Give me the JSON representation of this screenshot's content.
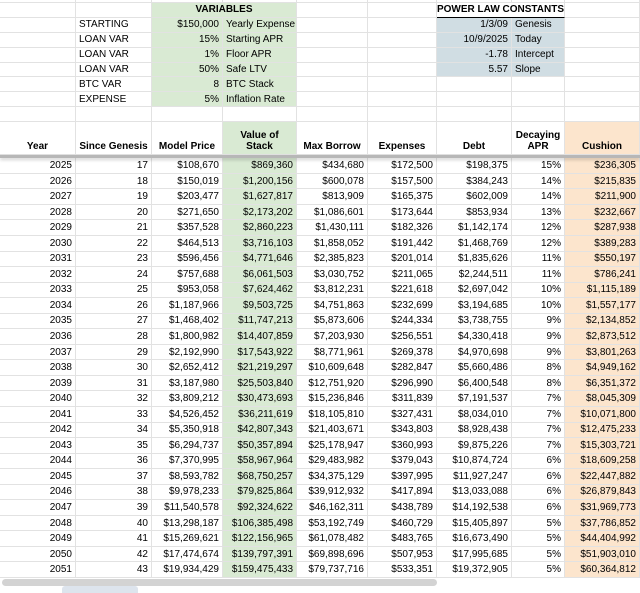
{
  "app": {
    "kind": "spreadsheet",
    "description_visible": "BTC power-law loan model sheet"
  },
  "colors": {
    "variables_bg": "#d9ead3",
    "power_law_bg": "#d0dde3",
    "cushion_bg": "#fce5cd",
    "gridline": "#e2e2e2",
    "frozen_divider": "#b7b7b7",
    "scrollbar_thumb": "#d3d3d3"
  },
  "variables_panel": {
    "title": "VARIABLES",
    "rows": [
      {
        "category": "STARTING",
        "value": "$150,000",
        "name": "Yearly Expense"
      },
      {
        "category": "LOAN VAR",
        "value": "15%",
        "name": "Starting APR"
      },
      {
        "category": "LOAN VAR",
        "value": "1%",
        "name": "Floor APR"
      },
      {
        "category": "LOAN VAR",
        "value": "50%",
        "name": "Safe LTV"
      },
      {
        "category": "BTC VAR",
        "value": "8",
        "name": "BTC Stack"
      },
      {
        "category": "EXPENSE",
        "value": "5%",
        "name": "Inflation Rate"
      }
    ]
  },
  "power_law_panel": {
    "title": "POWER LAW CONSTANTS",
    "rows": [
      {
        "value": "1/3/09",
        "label": "Genesis"
      },
      {
        "value": "10/9/2025",
        "label": "Today"
      },
      {
        "value": "-1.78",
        "label": "Intercept"
      },
      {
        "value": "5.57",
        "label": "Slope"
      }
    ]
  },
  "table": {
    "columns": [
      "Year",
      "Since Genesis",
      "Model Price",
      "Value of Stack",
      "Max Borrow",
      "Expenses",
      "Debt",
      "Decaying APR",
      "Cushion"
    ],
    "rows": [
      [
        "2025",
        "17",
        "$108,670",
        "$869,360",
        "$434,680",
        "$172,500",
        "$198,375",
        "15%",
        "$236,305"
      ],
      [
        "2026",
        "18",
        "$150,019",
        "$1,200,156",
        "$600,078",
        "$157,500",
        "$384,243",
        "14%",
        "$215,835"
      ],
      [
        "2027",
        "19",
        "$203,477",
        "$1,627,817",
        "$813,909",
        "$165,375",
        "$602,009",
        "14%",
        "$211,900"
      ],
      [
        "2028",
        "20",
        "$271,650",
        "$2,173,202",
        "$1,086,601",
        "$173,644",
        "$853,934",
        "13%",
        "$232,667"
      ],
      [
        "2029",
        "21",
        "$357,528",
        "$2,860,223",
        "$1,430,111",
        "$182,326",
        "$1,142,174",
        "12%",
        "$287,938"
      ],
      [
        "2030",
        "22",
        "$464,513",
        "$3,716,103",
        "$1,858,052",
        "$191,442",
        "$1,468,769",
        "12%",
        "$389,283"
      ],
      [
        "2031",
        "23",
        "$596,456",
        "$4,771,646",
        "$2,385,823",
        "$201,014",
        "$1,835,626",
        "11%",
        "$550,197"
      ],
      [
        "2032",
        "24",
        "$757,688",
        "$6,061,503",
        "$3,030,752",
        "$211,065",
        "$2,244,511",
        "11%",
        "$786,241"
      ],
      [
        "2033",
        "25",
        "$953,058",
        "$7,624,462",
        "$3,812,231",
        "$221,618",
        "$2,697,042",
        "10%",
        "$1,115,189"
      ],
      [
        "2034",
        "26",
        "$1,187,966",
        "$9,503,725",
        "$4,751,863",
        "$232,699",
        "$3,194,685",
        "10%",
        "$1,557,177"
      ],
      [
        "2035",
        "27",
        "$1,468,402",
        "$11,747,213",
        "$5,873,606",
        "$244,334",
        "$3,738,755",
        "9%",
        "$2,134,852"
      ],
      [
        "2036",
        "28",
        "$1,800,982",
        "$14,407,859",
        "$7,203,930",
        "$256,551",
        "$4,330,418",
        "9%",
        "$2,873,512"
      ],
      [
        "2037",
        "29",
        "$2,192,990",
        "$17,543,922",
        "$8,771,961",
        "$269,378",
        "$4,970,698",
        "9%",
        "$3,801,263"
      ],
      [
        "2038",
        "30",
        "$2,652,412",
        "$21,219,297",
        "$10,609,648",
        "$282,847",
        "$5,660,486",
        "8%",
        "$4,949,162"
      ],
      [
        "2039",
        "31",
        "$3,187,980",
        "$25,503,840",
        "$12,751,920",
        "$296,990",
        "$6,400,548",
        "8%",
        "$6,351,372"
      ],
      [
        "2040",
        "32",
        "$3,809,212",
        "$30,473,693",
        "$15,236,846",
        "$311,839",
        "$7,191,537",
        "7%",
        "$8,045,309"
      ],
      [
        "2041",
        "33",
        "$4,526,452",
        "$36,211,619",
        "$18,105,810",
        "$327,431",
        "$8,034,010",
        "7%",
        "$10,071,800"
      ],
      [
        "2042",
        "34",
        "$5,350,918",
        "$42,807,343",
        "$21,403,671",
        "$343,803",
        "$8,928,438",
        "7%",
        "$12,475,233"
      ],
      [
        "2043",
        "35",
        "$6,294,737",
        "$50,357,894",
        "$25,178,947",
        "$360,993",
        "$9,875,226",
        "7%",
        "$15,303,721"
      ],
      [
        "2044",
        "36",
        "$7,370,995",
        "$58,967,964",
        "$29,483,982",
        "$379,043",
        "$10,874,724",
        "6%",
        "$18,609,258"
      ],
      [
        "2045",
        "37",
        "$8,593,782",
        "$68,750,257",
        "$34,375,129",
        "$397,995",
        "$11,927,247",
        "6%",
        "$22,447,882"
      ],
      [
        "2046",
        "38",
        "$9,978,233",
        "$79,825,864",
        "$39,912,932",
        "$417,894",
        "$13,033,088",
        "6%",
        "$26,879,843"
      ],
      [
        "2047",
        "39",
        "$11,540,578",
        "$92,324,622",
        "$46,162,311",
        "$438,789",
        "$14,192,538",
        "6%",
        "$31,969,773"
      ],
      [
        "2048",
        "40",
        "$13,298,187",
        "$106,385,498",
        "$53,192,749",
        "$460,729",
        "$15,405,897",
        "5%",
        "$37,786,852"
      ],
      [
        "2049",
        "41",
        "$15,269,621",
        "$122,156,965",
        "$61,078,482",
        "$483,765",
        "$16,673,490",
        "5%",
        "$44,404,992"
      ],
      [
        "2050",
        "42",
        "$17,474,674",
        "$139,797,391",
        "$69,898,696",
        "$507,953",
        "$17,995,685",
        "5%",
        "$51,903,010"
      ],
      [
        "2051",
        "43",
        "$19,934,429",
        "$159,475,433",
        "$79,737,716",
        "$533,351",
        "$19,372,905",
        "5%",
        "$60,364,812"
      ]
    ]
  }
}
